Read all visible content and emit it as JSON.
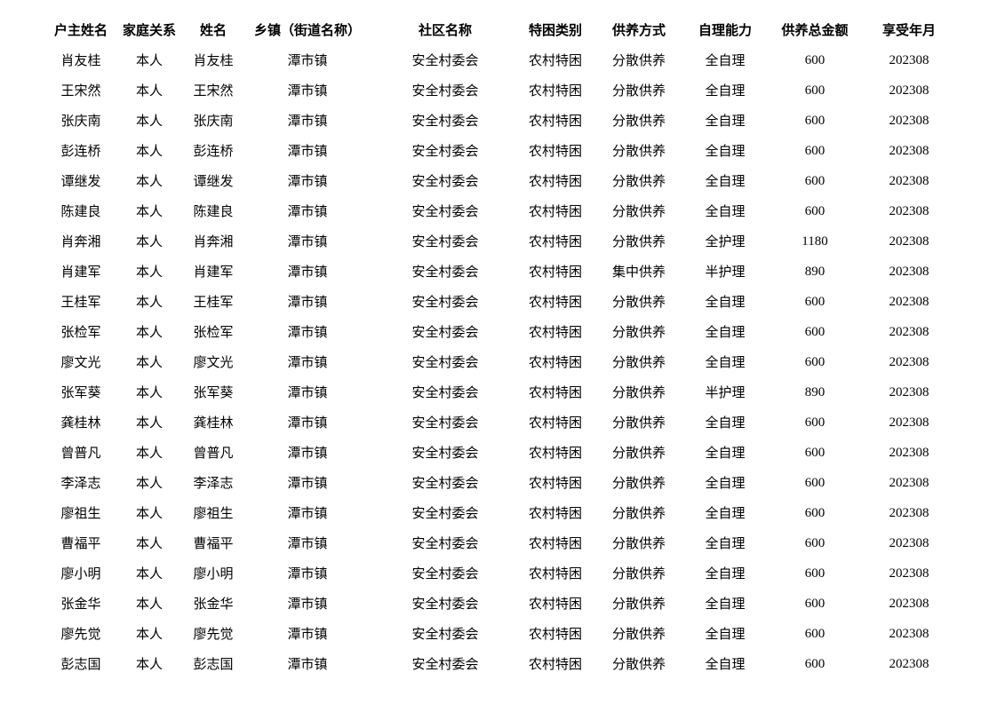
{
  "table": {
    "headers": [
      "户主姓名",
      "家庭关系",
      "姓名",
      "乡镇（街道名称）",
      "社区名称",
      "特困类别",
      "供养方式",
      "自理能力",
      "供养总金额",
      "享受年月"
    ],
    "rows": [
      [
        "肖友桂",
        "本人",
        "肖友桂",
        "潭市镇",
        "安全村委会",
        "农村特困",
        "分散供养",
        "全自理",
        "600",
        "202308"
      ],
      [
        "王宋然",
        "本人",
        "王宋然",
        "潭市镇",
        "安全村委会",
        "农村特困",
        "分散供养",
        "全自理",
        "600",
        "202308"
      ],
      [
        "张庆南",
        "本人",
        "张庆南",
        "潭市镇",
        "安全村委会",
        "农村特困",
        "分散供养",
        "全自理",
        "600",
        "202308"
      ],
      [
        "彭连桥",
        "本人",
        "彭连桥",
        "潭市镇",
        "安全村委会",
        "农村特困",
        "分散供养",
        "全自理",
        "600",
        "202308"
      ],
      [
        "谭继发",
        "本人",
        "谭继发",
        "潭市镇",
        "安全村委会",
        "农村特困",
        "分散供养",
        "全自理",
        "600",
        "202308"
      ],
      [
        "陈建良",
        "本人",
        "陈建良",
        "潭市镇",
        "安全村委会",
        "农村特困",
        "分散供养",
        "全自理",
        "600",
        "202308"
      ],
      [
        "肖奔湘",
        "本人",
        "肖奔湘",
        "潭市镇",
        "安全村委会",
        "农村特困",
        "分散供养",
        "全护理",
        "1180",
        "202308"
      ],
      [
        "肖建军",
        "本人",
        "肖建军",
        "潭市镇",
        "安全村委会",
        "农村特困",
        "集中供养",
        "半护理",
        "890",
        "202308"
      ],
      [
        "王桂军",
        "本人",
        "王桂军",
        "潭市镇",
        "安全村委会",
        "农村特困",
        "分散供养",
        "全自理",
        "600",
        "202308"
      ],
      [
        "张检军",
        "本人",
        "张检军",
        "潭市镇",
        "安全村委会",
        "农村特困",
        "分散供养",
        "全自理",
        "600",
        "202308"
      ],
      [
        "廖文光",
        "本人",
        "廖文光",
        "潭市镇",
        "安全村委会",
        "农村特困",
        "分散供养",
        "全自理",
        "600",
        "202308"
      ],
      [
        "张军葵",
        "本人",
        "张军葵",
        "潭市镇",
        "安全村委会",
        "农村特困",
        "分散供养",
        "半护理",
        "890",
        "202308"
      ],
      [
        "龚桂林",
        "本人",
        "龚桂林",
        "潭市镇",
        "安全村委会",
        "农村特困",
        "分散供养",
        "全自理",
        "600",
        "202308"
      ],
      [
        "曾普凡",
        "本人",
        "曾普凡",
        "潭市镇",
        "安全村委会",
        "农村特困",
        "分散供养",
        "全自理",
        "600",
        "202308"
      ],
      [
        "李泽志",
        "本人",
        "李泽志",
        "潭市镇",
        "安全村委会",
        "农村特困",
        "分散供养",
        "全自理",
        "600",
        "202308"
      ],
      [
        "廖祖生",
        "本人",
        "廖祖生",
        "潭市镇",
        "安全村委会",
        "农村特困",
        "分散供养",
        "全自理",
        "600",
        "202308"
      ],
      [
        "曹福平",
        "本人",
        "曹福平",
        "潭市镇",
        "安全村委会",
        "农村特困",
        "分散供养",
        "全自理",
        "600",
        "202308"
      ],
      [
        "廖小明",
        "本人",
        "廖小明",
        "潭市镇",
        "安全村委会",
        "农村特困",
        "分散供养",
        "全自理",
        "600",
        "202308"
      ],
      [
        "张金华",
        "本人",
        "张金华",
        "潭市镇",
        "安全村委会",
        "农村特困",
        "分散供养",
        "全自理",
        "600",
        "202308"
      ],
      [
        "廖先觉",
        "本人",
        "廖先觉",
        "潭市镇",
        "安全村委会",
        "农村特困",
        "分散供养",
        "全自理",
        "600",
        "202308"
      ],
      [
        "彭志国",
        "本人",
        "彭志国",
        "潭市镇",
        "安全村委会",
        "农村特困",
        "分散供养",
        "全自理",
        "600",
        "202308"
      ]
    ]
  }
}
